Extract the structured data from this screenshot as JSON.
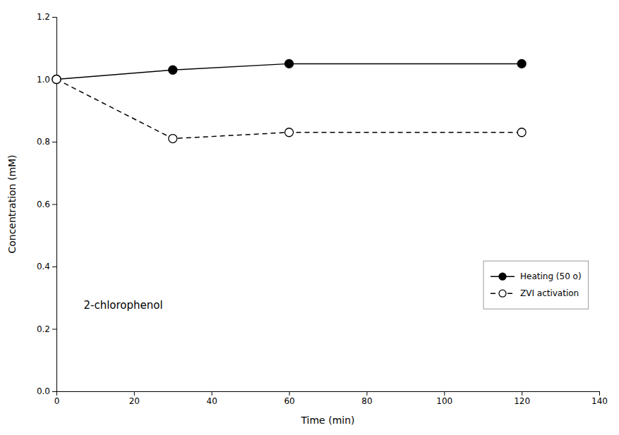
{
  "chart_data": {
    "type": "line",
    "xlabel": "Time (min)",
    "ylabel": "Concentration (mM)",
    "annotation": "2-chlorophenol",
    "x": [
      0,
      30,
      60,
      120
    ],
    "series": [
      {
        "name": "Heating (50 o)",
        "color": "#000000",
        "line_style": "solid",
        "marker": "filled-circle",
        "values": [
          1.0,
          1.03,
          1.05,
          1.05
        ]
      },
      {
        "name": "ZVI activation",
        "color": "#000000",
        "line_style": "dashed",
        "marker": "open-circle",
        "values": [
          1.0,
          0.81,
          0.83,
          0.83
        ]
      }
    ],
    "xlim": [
      0,
      140
    ],
    "ylim": [
      0.0,
      1.2
    ],
    "xticks": [
      0,
      20,
      40,
      60,
      80,
      100,
      120,
      140
    ],
    "yticks": [
      {
        "value": 0.0,
        "label": "0.0"
      },
      0.2,
      0.4,
      0.6,
      0.8,
      {
        "value": 1.0,
        "label": "1.0"
      },
      1.2
    ],
    "grid": false,
    "legend": "lower right"
  }
}
